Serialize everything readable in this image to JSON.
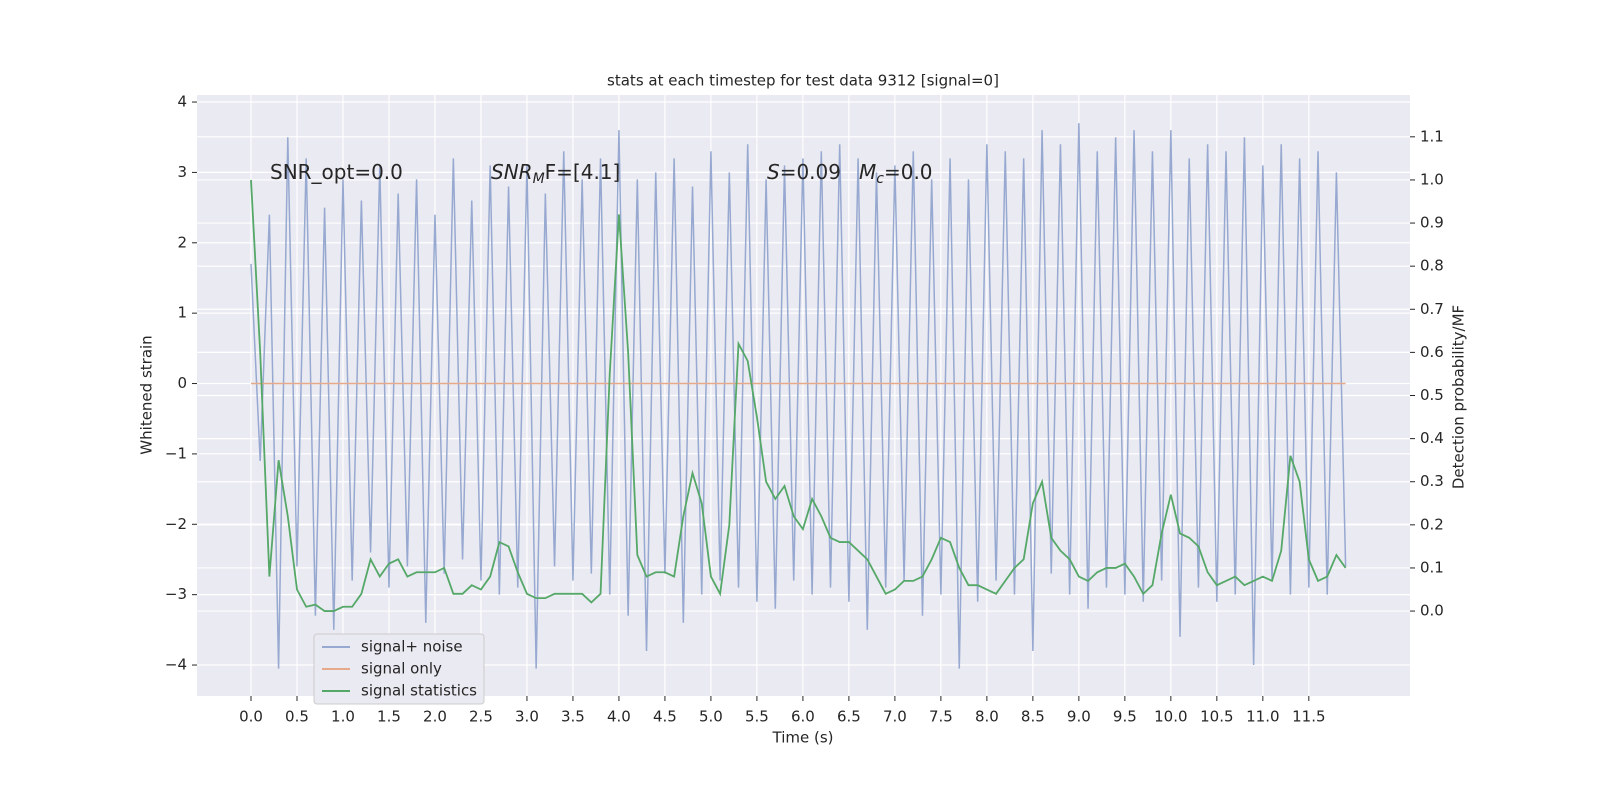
{
  "chart_data": {
    "type": "line",
    "title": "stats at each timestep for test data 9312 [signal=0]",
    "xlabel": "Time (s)",
    "ylabel": "Whitened strain",
    "y2label": "Detection probability/MF",
    "annotations": [
      {
        "text": "SNR_opt=0.0"
      },
      {
        "text": "SNR",
        "sub": "M",
        "after": "F=[4.1]"
      },
      {
        "text": "S",
        "after": "=0.09"
      },
      {
        "text": "M",
        "sub": "c",
        "after": "=0.0"
      }
    ],
    "x": [
      0,
      0.1,
      0.2,
      0.3,
      0.4,
      0.5,
      0.6,
      0.7,
      0.8,
      0.9,
      1,
      1.1,
      1.2,
      1.3,
      1.4,
      1.5,
      1.6,
      1.7,
      1.8,
      1.9,
      2,
      2.1,
      2.2,
      2.3,
      2.4,
      2.5,
      2.6,
      2.7,
      2.8,
      2.9,
      3,
      3.1,
      3.2,
      3.3,
      3.4,
      3.5,
      3.6,
      3.7,
      3.8,
      3.9,
      4,
      4.1,
      4.2,
      4.3,
      4.4,
      4.5,
      4.6,
      4.7,
      4.8,
      4.9,
      5,
      5.1,
      5.2,
      5.3,
      5.4,
      5.5,
      5.6,
      5.7,
      5.8,
      5.9,
      6,
      6.1,
      6.2,
      6.3,
      6.4,
      6.5,
      6.6,
      6.7,
      6.8,
      6.9,
      7,
      7.1,
      7.2,
      7.3,
      7.4,
      7.5,
      7.6,
      7.7,
      7.8,
      7.9,
      8,
      8.1,
      8.2,
      8.3,
      8.4,
      8.5,
      8.6,
      8.7,
      8.8,
      8.9,
      9,
      9.1,
      9.2,
      9.3,
      9.4,
      9.5,
      9.6,
      9.7,
      9.8,
      9.9,
      10,
      10.1,
      10.2,
      10.3,
      10.4,
      10.5,
      10.6,
      10.7,
      10.8,
      10.9,
      11,
      11.1,
      11.2,
      11.3,
      11.4,
      11.5,
      11.6,
      11.7,
      11.8,
      11.9
    ],
    "series": [
      {
        "name": "signal+ noise",
        "color": "#97a9d0",
        "values": [
          1.7,
          -1.1,
          2.4,
          -4.05,
          3.5,
          -2.6,
          3.2,
          -3.3,
          2.5,
          -3.5,
          2.9,
          -2.8,
          2.6,
          -2.4,
          3.1,
          -2.9,
          2.7,
          -2.6,
          2.9,
          -3.4,
          2.4,
          -2.7,
          3.2,
          -2.5,
          2.6,
          -2.8,
          3.1,
          -3.0,
          2.8,
          -2.9,
          3.1,
          -4.05,
          2.7,
          -2.6,
          3.3,
          -2.8,
          2.9,
          -2.7,
          3.2,
          -3.0,
          3.6,
          -3.3,
          2.9,
          -3.8,
          3.0,
          -2.7,
          3.2,
          -3.4,
          2.8,
          -3.0,
          3.3,
          -2.8,
          3.0,
          -2.9,
          3.4,
          -3.1,
          2.9,
          -3.2,
          3.1,
          -2.8,
          3.2,
          -3.0,
          3.3,
          -2.9,
          3.4,
          -3.1,
          3.2,
          -3.5,
          3.0,
          -2.9,
          3.1,
          -2.8,
          3.3,
          -3.3,
          2.9,
          -3.0,
          3.2,
          -4.05,
          2.9,
          -3.1,
          3.4,
          -2.8,
          3.3,
          -3.0,
          3.2,
          -3.8,
          3.6,
          -2.7,
          3.4,
          -3.0,
          3.7,
          -3.2,
          3.3,
          -2.9,
          3.5,
          -3.0,
          3.6,
          -3.1,
          3.3,
          -2.8,
          3.6,
          -3.6,
          3.2,
          -2.9,
          3.4,
          -3.1,
          3.3,
          -3.0,
          3.5,
          -4.0,
          3.1,
          -2.8,
          3.4,
          -3.0,
          3.2,
          -2.9,
          3.3,
          -3.0,
          3.0,
          -2.6
        ]
      },
      {
        "name": "signal only",
        "color": "#e6a98a",
        "values": [
          0,
          0,
          0,
          0,
          0,
          0,
          0,
          0,
          0,
          0,
          0,
          0,
          0,
          0,
          0,
          0,
          0,
          0,
          0,
          0,
          0,
          0,
          0,
          0,
          0,
          0,
          0,
          0,
          0,
          0,
          0,
          0,
          0,
          0,
          0,
          0,
          0,
          0,
          0,
          0,
          0,
          0,
          0,
          0,
          0,
          0,
          0,
          0,
          0,
          0,
          0,
          0,
          0,
          0,
          0,
          0,
          0,
          0,
          0,
          0,
          0,
          0,
          0,
          0,
          0,
          0,
          0,
          0,
          0,
          0,
          0,
          0,
          0,
          0,
          0,
          0,
          0,
          0,
          0,
          0,
          0,
          0,
          0,
          0,
          0,
          0,
          0,
          0,
          0,
          0,
          0,
          0,
          0,
          0,
          0,
          0,
          0,
          0,
          0,
          0,
          0,
          0,
          0,
          0,
          0,
          0,
          0,
          0,
          0,
          0,
          0,
          0,
          0,
          0,
          0,
          0,
          0,
          0,
          0,
          0
        ]
      },
      {
        "name": "signal statistics",
        "color": "#55a868",
        "axis": "y2",
        "values": [
          1.0,
          0.6,
          0.08,
          0.35,
          0.22,
          0.05,
          0.01,
          0.015,
          0.0,
          0.0,
          0.01,
          0.01,
          0.04,
          0.12,
          0.08,
          0.11,
          0.12,
          0.08,
          0.09,
          0.09,
          0.09,
          0.1,
          0.04,
          0.04,
          0.06,
          0.05,
          0.08,
          0.16,
          0.15,
          0.09,
          0.04,
          0.03,
          0.03,
          0.04,
          0.04,
          0.04,
          0.04,
          0.02,
          0.04,
          0.55,
          0.92,
          0.6,
          0.13,
          0.08,
          0.09,
          0.09,
          0.08,
          0.22,
          0.32,
          0.25,
          0.08,
          0.04,
          0.2,
          0.62,
          0.58,
          0.45,
          0.3,
          0.26,
          0.29,
          0.22,
          0.19,
          0.26,
          0.22,
          0.17,
          0.16,
          0.16,
          0.14,
          0.12,
          0.08,
          0.04,
          0.05,
          0.07,
          0.07,
          0.08,
          0.12,
          0.17,
          0.16,
          0.1,
          0.06,
          0.06,
          0.05,
          0.04,
          0.07,
          0.1,
          0.12,
          0.25,
          0.3,
          0.17,
          0.14,
          0.12,
          0.08,
          0.07,
          0.09,
          0.1,
          0.1,
          0.11,
          0.08,
          0.04,
          0.06,
          0.18,
          0.27,
          0.18,
          0.17,
          0.15,
          0.09,
          0.06,
          0.07,
          0.08,
          0.06,
          0.07,
          0.08,
          0.07,
          0.14,
          0.36,
          0.3,
          0.12,
          0.07,
          0.08,
          0.13,
          0.1
        ]
      }
    ],
    "xlim": [
      -0.587,
      12.6
    ],
    "xticks": [
      {
        "value": 0,
        "label": "0.0"
      },
      0.5,
      {
        "value": 1,
        "label": "1.0"
      },
      1.5,
      {
        "value": 2,
        "label": "2.0"
      },
      2.5,
      {
        "value": 3,
        "label": "3.0"
      },
      3.5,
      {
        "value": 4,
        "label": "4.0"
      },
      4.5,
      {
        "value": 5,
        "label": "5.0"
      },
      5.5,
      {
        "value": 6,
        "label": "6.0"
      },
      6.5,
      {
        "value": 7,
        "label": "7.0"
      },
      7.5,
      {
        "value": 8,
        "label": "8.0"
      },
      8.5,
      {
        "value": 9,
        "label": "9.0"
      },
      9.5,
      {
        "value": 10,
        "label": "10.0"
      },
      10.5,
      {
        "value": 11,
        "label": "11.0"
      },
      11.5
    ],
    "ylim": [
      -4.44,
      4.1
    ],
    "yticks": [
      {
        "value": -4,
        "label": "−4"
      },
      {
        "value": -3,
        "label": "−3"
      },
      {
        "value": -2,
        "label": "−2"
      },
      {
        "value": -1,
        "label": "−1"
      },
      0,
      1,
      2,
      3,
      4
    ],
    "y2lim": [
      -0.197,
      1.197
    ],
    "y2ticks": [
      {
        "value": 0,
        "label": "0.0"
      },
      0.1,
      0.2,
      0.3,
      0.4,
      0.5,
      0.6,
      0.7,
      0.8,
      0.9,
      {
        "value": 1,
        "label": "1.0"
      },
      1.1
    ],
    "grid": true,
    "legend": "lower left"
  }
}
